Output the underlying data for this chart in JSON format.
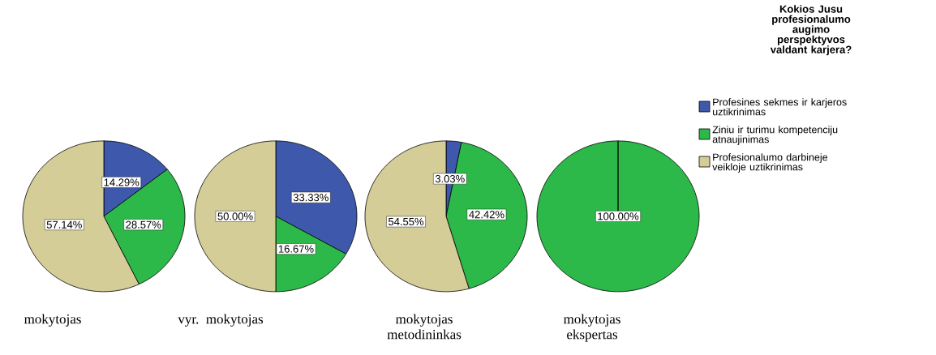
{
  "chart_data": [
    {
      "type": "pie",
      "xlabel": "mokytojas",
      "legend": "right",
      "legend_title": "Kokios Jusu profesionalumo augimo perspektyvos valdant karjera?",
      "categories": [
        "Profesines sekmes ir karjeros uztikrinimas",
        "Ziniu ir turimu kompetenciju atnaujinimas",
        "Profesionalumo darbineje veikloje uztikrinimas"
      ],
      "values": [
        14.29,
        28.57,
        57.14
      ],
      "colors": [
        "#3e58ac",
        "#2db84a",
        "#d4cd98"
      ],
      "value_labels": [
        "14.29%",
        "28.57%",
        "57.14%"
      ]
    },
    {
      "type": "pie",
      "xlabel": "vyr. mokytojas",
      "categories": [
        null,
        null,
        null
      ],
      "values": [
        33.33,
        16.67,
        50.0
      ],
      "colors": [
        "#3e58ac",
        "#2db84a",
        "#d4cd98"
      ],
      "value_labels": [
        "33.33%",
        "16.67%",
        "50.00%"
      ]
    },
    {
      "type": "pie",
      "xlabel": "mokytojas metodininkas",
      "categories": [
        null,
        null,
        null
      ],
      "values": [
        3.03,
        42.42,
        54.55
      ],
      "colors": [
        "#3e58ac",
        "#2db84a",
        "#d4cd98"
      ],
      "value_labels": [
        "3.03%",
        "42.42%",
        "54.55%"
      ]
    },
    {
      "type": "pie",
      "xlabel": "mokytojas ekspertas",
      "categories": [
        null
      ],
      "values": [
        100
      ],
      "colors": [
        "#2db84a"
      ],
      "value_labels": [
        "100.00%"
      ]
    }
  ]
}
